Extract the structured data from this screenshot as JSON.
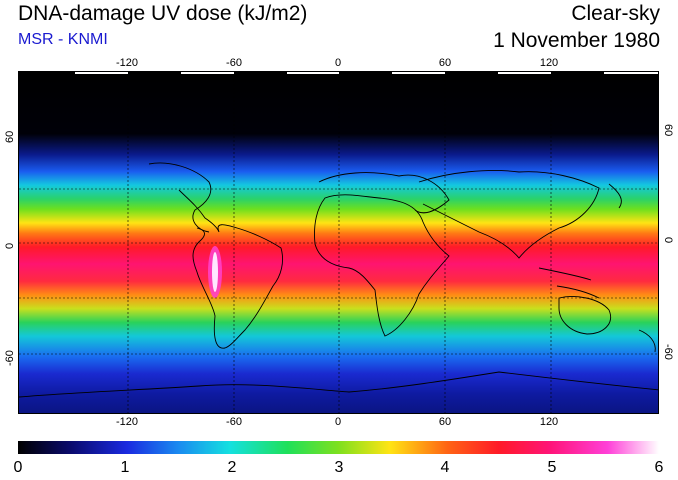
{
  "header": {
    "title": "DNA-damage UV dose (kJ/m2)",
    "subtitle": "MSR - KNMI",
    "mode": "Clear-sky",
    "date": "1 November 1980"
  },
  "map": {
    "lon_ticks": [
      "-120",
      "-60",
      "0",
      "60",
      "120"
    ],
    "lat_ticks": [
      "60",
      "0",
      "-60"
    ]
  },
  "colorbar": {
    "labels": [
      "0",
      "1",
      "2",
      "3",
      "4",
      "5",
      "6"
    ],
    "min": 0,
    "max": 6
  },
  "colors": {
    "subtitle": "#1a1ad0"
  }
}
